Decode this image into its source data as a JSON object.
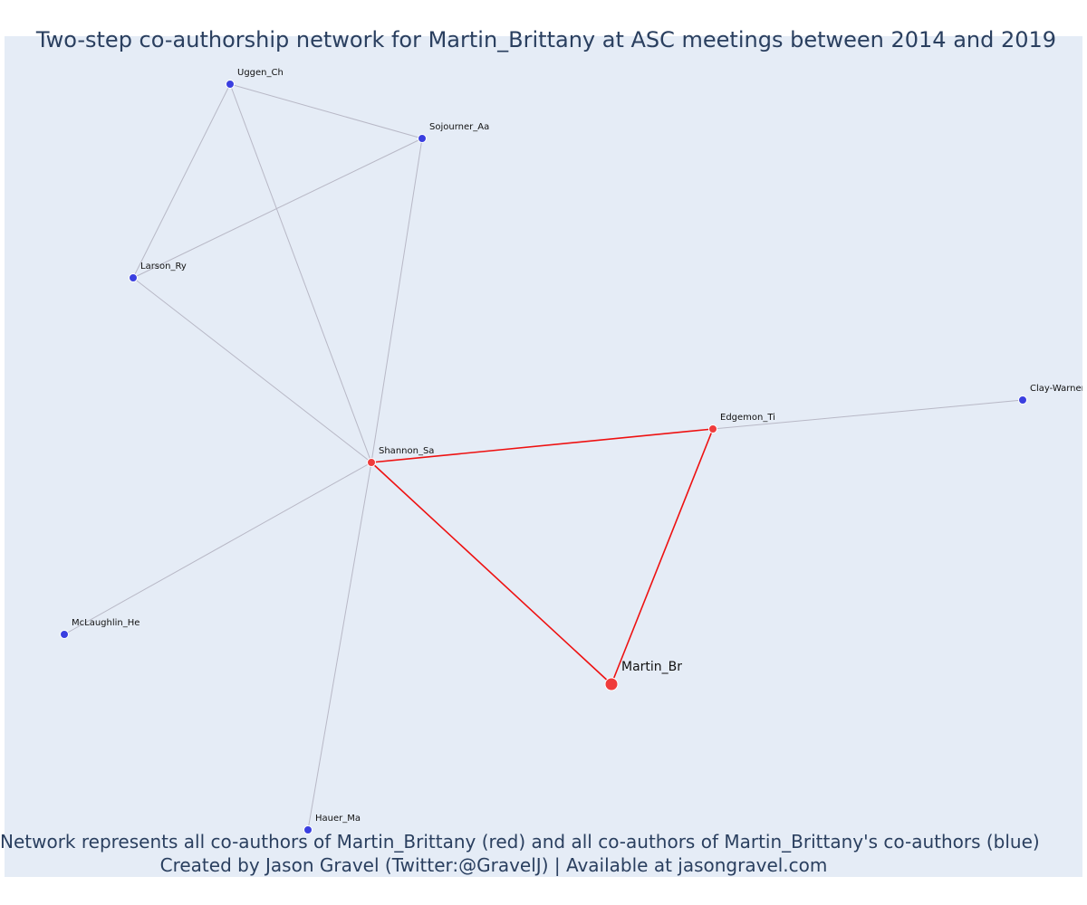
{
  "title": "Two-step co-authorship network for Martin_Brittany at ASC meetings between 2014 and 2019",
  "caption_line1": "Network represents all co-authors of Martin_Brittany (red) and all co-authors of Martin_Brittany's co-authors (blue)",
  "caption_line2": "Created by Jason Gravel (Twitter:@GravelJ) | Available at jasongravel.com",
  "colors": {
    "background": "#e5ecf6",
    "focal_edge": "#ee1111",
    "other_edge": "#b8b8c6",
    "red_node": "#ef3b3b",
    "blue_node": "#3a3fe0",
    "text": "#2a3f5f"
  },
  "nodes": [
    {
      "id": "Uggen_Ch",
      "label": "Uggen_Ch",
      "group": "blue"
    },
    {
      "id": "Sojourner_Aa",
      "label": "Sojourner_Aa",
      "group": "blue"
    },
    {
      "id": "Larson_Ry",
      "label": "Larson_Ry",
      "group": "blue"
    },
    {
      "id": "Clay-Warner",
      "label": "Clay-Warner_",
      "group": "blue"
    },
    {
      "id": "Edgemon_Ti",
      "label": "Edgemon_Ti",
      "group": "red"
    },
    {
      "id": "Shannon_Sa",
      "label": "Shannon_Sa",
      "group": "red"
    },
    {
      "id": "McLaughlin_He",
      "label": "McLaughlin_He",
      "group": "blue"
    },
    {
      "id": "Martin_Br",
      "label": "Martin_Br",
      "group": "focal"
    },
    {
      "id": "Hauer_Ma",
      "label": "Hauer_Ma",
      "group": "blue"
    }
  ],
  "edges": [
    {
      "source": "Uggen_Ch",
      "target": "Sojourner_Aa",
      "focal": false
    },
    {
      "source": "Uggen_Ch",
      "target": "Larson_Ry",
      "focal": false
    },
    {
      "source": "Uggen_Ch",
      "target": "Shannon_Sa",
      "focal": false
    },
    {
      "source": "Sojourner_Aa",
      "target": "Larson_Ry",
      "focal": false
    },
    {
      "source": "Sojourner_Aa",
      "target": "Shannon_Sa",
      "focal": false
    },
    {
      "source": "Larson_Ry",
      "target": "Shannon_Sa",
      "focal": false
    },
    {
      "source": "Shannon_Sa",
      "target": "McLaughlin_He",
      "focal": false
    },
    {
      "source": "Shannon_Sa",
      "target": "Hauer_Ma",
      "focal": false
    },
    {
      "source": "Edgemon_Ti",
      "target": "Clay-Warner",
      "focal": false
    },
    {
      "source": "Shannon_Sa",
      "target": "Edgemon_Ti",
      "focal": true
    },
    {
      "source": "Shannon_Sa",
      "target": "Martin_Br",
      "focal": true
    },
    {
      "source": "Edgemon_Ti",
      "target": "Martin_Br",
      "focal": true
    }
  ]
}
